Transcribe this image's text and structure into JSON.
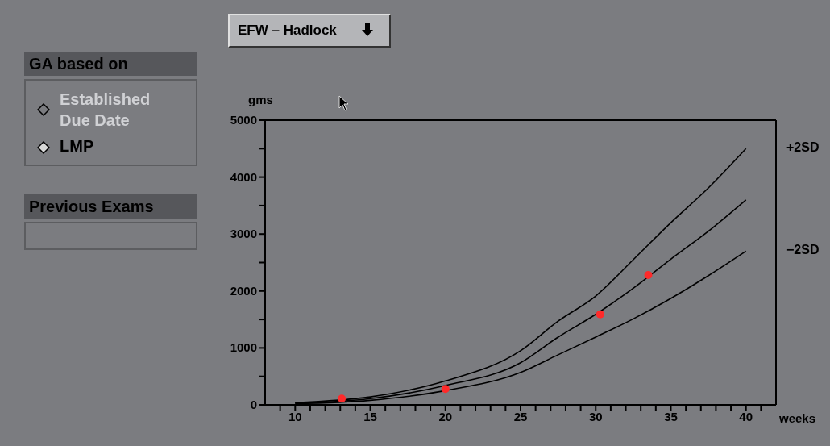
{
  "chart_data": {
    "type": "line",
    "title": "EFW – Hadlock",
    "xlabel": "weeks",
    "ylabel": "gms",
    "x": [
      10,
      15,
      20,
      25,
      27.5,
      30,
      32.5,
      35,
      37.5,
      40
    ],
    "series": [
      {
        "color": "#000000",
        "marker": "none",
        "line_style": "solid",
        "values": [
          40,
          140,
          420,
          950,
          1470,
          1910,
          2550,
          3200,
          3810,
          4500
        ]
      },
      {
        "color": "#000000",
        "marker": "none",
        "line_style": "solid",
        "values": [
          30,
          110,
          340,
          740,
          1190,
          1590,
          2050,
          2560,
          3050,
          3600
        ]
      },
      {
        "color": "#000000",
        "marker": "none",
        "line_style": "solid",
        "values": [
          20,
          80,
          250,
          570,
          880,
          1190,
          1510,
          1870,
          2270,
          2700
        ]
      },
      {
        "type": "scatter",
        "color": "#ff2a2a",
        "marker": "circle",
        "x": [
          13.1,
          20,
          30.3,
          33.5
        ],
        "values": [
          110,
          280,
          1590,
          2280
        ]
      }
    ],
    "xlim": [
      8,
      42
    ],
    "xticks": [
      {
        "value": 9,
        "label": null
      },
      10,
      {
        "value": 11,
        "label": null
      },
      {
        "value": 12,
        "label": null
      },
      {
        "value": 13,
        "label": null
      },
      {
        "value": 14,
        "label": null
      },
      15,
      {
        "value": 16,
        "label": null
      },
      {
        "value": 17,
        "label": null
      },
      {
        "value": 18,
        "label": null
      },
      {
        "value": 19,
        "label": null
      },
      20,
      {
        "value": 21,
        "label": null
      },
      {
        "value": 22,
        "label": null
      },
      {
        "value": 23,
        "label": null
      },
      {
        "value": 24,
        "label": null
      },
      25,
      {
        "value": 26,
        "label": null
      },
      {
        "value": 27,
        "label": null
      },
      {
        "value": 28,
        "label": null
      },
      {
        "value": 29,
        "label": null
      },
      30,
      {
        "value": 31,
        "label": null
      },
      {
        "value": 32,
        "label": null
      },
      {
        "value": 33,
        "label": null
      },
      {
        "value": 34,
        "label": null
      },
      35,
      {
        "value": 36,
        "label": null
      },
      {
        "value": 37,
        "label": null
      },
      {
        "value": 38,
        "label": null
      },
      {
        "value": 39,
        "label": null
      },
      40,
      {
        "value": 41,
        "label": null
      }
    ],
    "ylim": [
      0,
      5000
    ],
    "yticks": [
      0,
      {
        "value": 500,
        "label": null
      },
      1000,
      {
        "value": 1500,
        "label": null
      },
      2000,
      {
        "value": 2500,
        "label": null
      },
      3000,
      {
        "value": 3500,
        "label": null
      },
      4000,
      {
        "value": 4500,
        "label": null
      },
      5000
    ],
    "annotations": [
      "+2SD",
      "−2SD",
      "GA based on",
      "Established Due Date",
      "LMP",
      "Previous Exams"
    ]
  }
}
